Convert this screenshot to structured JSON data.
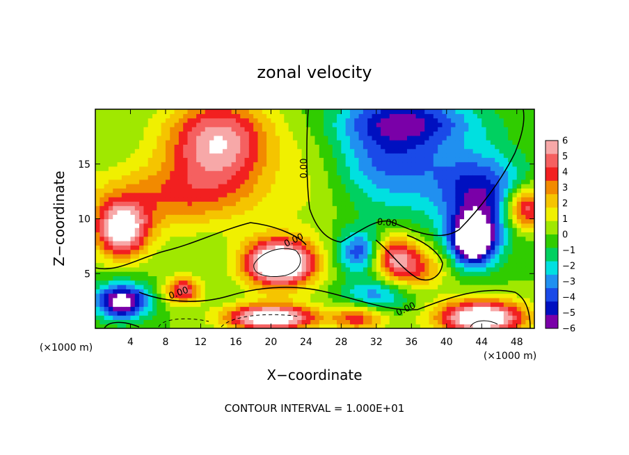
{
  "chart_data": {
    "type": "heatmap",
    "title": "zonal velocity",
    "xlabel": "X−coordinate",
    "ylabel": "Z−coordinate",
    "x_unit_left": "(×1000 m)",
    "x_unit_right": "(×1000 m)",
    "xlim": [
      0,
      50
    ],
    "ylim": [
      0,
      20
    ],
    "x_ticks": [
      4,
      8,
      12,
      16,
      20,
      24,
      28,
      32,
      36,
      40,
      44,
      48
    ],
    "y_ticks": [
      5,
      10,
      15
    ],
    "colorbar": {
      "ticks": [
        6,
        5,
        4,
        3,
        2,
        1,
        0,
        "−1",
        "−2",
        "−3",
        "−4",
        "−5",
        "−6"
      ],
      "colors": [
        "#f7a8a8",
        "#f56060",
        "#f22020",
        "#f28a00",
        "#f5c400",
        "#f0f000",
        "#a0e800",
        "#30cc00",
        "#00d060",
        "#00e0e0",
        "#2090f0",
        "#1a4ae8",
        "#0010c0",
        "#7a00a8"
      ],
      "range": [
        -6,
        6
      ]
    },
    "contour_labels": [
      "0.00",
      "0.00",
      "0.00",
      "0.00",
      "0.00"
    ],
    "footer": "CONTOUR INTERVAL = 1.000E+01",
    "field_sources": [
      {
        "x": 14,
        "z": 17,
        "value": 6,
        "sx": 6,
        "sz": 4
      },
      {
        "x": 9,
        "z": 12,
        "value": 3,
        "sx": 10,
        "sz": 3
      },
      {
        "x": 3,
        "z": 9,
        "value": 7,
        "sx": 3,
        "sz": 2.5
      },
      {
        "x": 21,
        "z": 6,
        "value": 9,
        "sx": 4,
        "sz": 2.2
      },
      {
        "x": 20,
        "z": 1,
        "value": 8,
        "sx": 5,
        "sz": 1.2
      },
      {
        "x": 10,
        "z": 3.5,
        "value": 5,
        "sx": 2,
        "sz": 1.2
      },
      {
        "x": 34,
        "z": 6.5,
        "value": 5,
        "sx": 2.5,
        "sz": 2
      },
      {
        "x": 37,
        "z": 5.5,
        "value": 3,
        "sx": 3,
        "sz": 2
      },
      {
        "x": 44,
        "z": 1,
        "value": 8,
        "sx": 5,
        "sz": 1.6
      },
      {
        "x": 49,
        "z": 11,
        "value": 6,
        "sx": 2.5,
        "sz": 2
      },
      {
        "x": 30,
        "z": 1,
        "value": 4,
        "sx": 3,
        "sz": 1.2
      },
      {
        "x": 34,
        "z": 16,
        "value": -4,
        "sx": 7,
        "sz": 5
      },
      {
        "x": 44,
        "z": 12,
        "value": -5,
        "sx": 5,
        "sz": 4
      },
      {
        "x": 43,
        "z": 8,
        "value": -8,
        "sx": 2.5,
        "sz": 2.2
      },
      {
        "x": 3,
        "z": 2.5,
        "value": -7,
        "sx": 3,
        "sz": 1.6
      },
      {
        "x": 30,
        "z": 7,
        "value": -4,
        "sx": 2.5,
        "sz": 2
      },
      {
        "x": 32,
        "z": 3,
        "value": -3,
        "sx": 4,
        "sz": 1.5
      },
      {
        "x": 36,
        "z": 19,
        "value": -3,
        "sx": 8,
        "sz": 2
      },
      {
        "x": 25,
        "z": 14,
        "value": 1,
        "sx": 4,
        "sz": 5
      }
    ]
  }
}
